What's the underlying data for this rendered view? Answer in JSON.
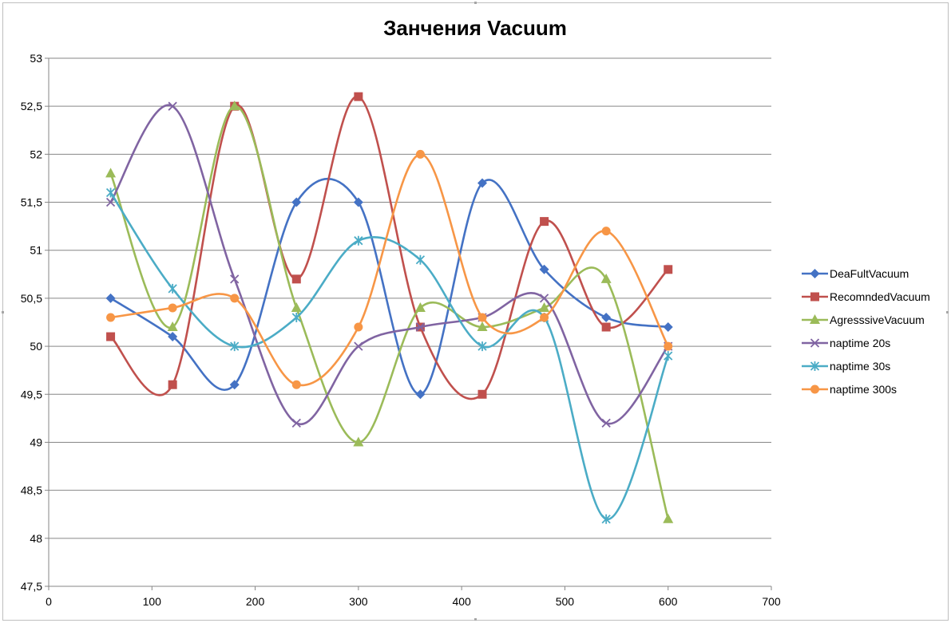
{
  "chart_data": {
    "type": "scatter",
    "title": "Занчения Vacuum",
    "xlabel": "",
    "ylabel": "",
    "xlim": [
      0,
      700
    ],
    "ylim": [
      47.5,
      53
    ],
    "x_ticks": [
      "0",
      "100",
      "200",
      "300",
      "400",
      "500",
      "600",
      "700"
    ],
    "y_ticks": [
      "47,5",
      "48",
      "48,5",
      "49",
      "49,5",
      "50",
      "50,5",
      "51",
      "51,5",
      "52",
      "52,5",
      "53"
    ],
    "x": [
      60,
      120,
      180,
      240,
      300,
      360,
      420,
      480,
      540,
      600
    ],
    "grid": true,
    "smooth_lines": true,
    "legend_position": "right",
    "series": [
      {
        "name": "DeaFultVacuum",
        "color": "#4472c4",
        "marker": "diamond",
        "values": [
          50.5,
          50.1,
          49.6,
          51.5,
          51.5,
          49.5,
          51.7,
          50.8,
          50.3,
          50.2
        ]
      },
      {
        "name": "RecomndedVacuum",
        "color": "#c0504d",
        "marker": "square",
        "values": [
          50.1,
          49.6,
          52.5,
          50.7,
          52.6,
          50.2,
          49.5,
          51.3,
          50.2,
          50.8
        ]
      },
      {
        "name": "AgresssiveVacuum",
        "color": "#9bbb59",
        "marker": "triangle",
        "values": [
          51.8,
          50.2,
          52.5,
          50.4,
          49.0,
          50.4,
          50.2,
          50.4,
          50.7,
          48.2
        ]
      },
      {
        "name": "naptime  20s",
        "color": "#8064a2",
        "marker": "x",
        "values": [
          51.5,
          52.5,
          50.7,
          49.2,
          50.0,
          50.2,
          50.3,
          50.5,
          49.2,
          50.0
        ]
      },
      {
        "name": "naptime  30s",
        "color": "#4bacc6",
        "marker": "star",
        "values": [
          51.6,
          50.6,
          50.0,
          50.3,
          51.1,
          50.9,
          50.0,
          50.3,
          48.2,
          49.9
        ]
      },
      {
        "name": "naptime 300s",
        "color": "#f79646",
        "marker": "circle",
        "values": [
          50.3,
          50.4,
          50.5,
          49.6,
          50.2,
          52.0,
          50.3,
          50.3,
          51.2,
          50.0
        ]
      }
    ]
  }
}
